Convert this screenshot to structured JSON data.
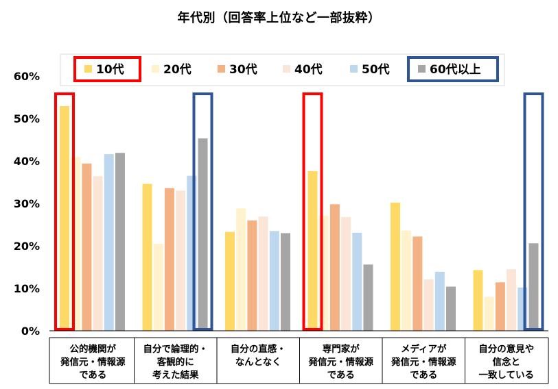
{
  "chart_data": {
    "type": "bar",
    "title": "年代別（回答率上位など一部抜粋）",
    "categories": [
      [
        "公的機関が",
        "発信元・情報源",
        "である"
      ],
      [
        "自分で論理的・",
        "客観的に",
        "考えた結果"
      ],
      [
        "自分の直感・",
        "なんとなく"
      ],
      [
        "専門家が",
        "発信元・情報源",
        "である"
      ],
      [
        "メディアが",
        "発信元・情報源",
        "である"
      ],
      [
        "自分の意見や",
        "信念と",
        "一致している"
      ]
    ],
    "series": [
      {
        "name": "10代",
        "color": "#FFD966",
        "values": [
          52.9,
          34.6,
          23.3,
          37.6,
          30.2,
          14.3
        ]
      },
      {
        "name": "20代",
        "color": "#FFF2CC",
        "values": [
          40.9,
          20.5,
          28.8,
          27.1,
          23.6,
          8.0
        ]
      },
      {
        "name": "30代",
        "color": "#F4B183",
        "values": [
          39.4,
          33.6,
          26.0,
          29.8,
          22.2,
          11.4
        ]
      },
      {
        "name": "40代",
        "color": "#FBE5D6",
        "values": [
          36.4,
          33.0,
          26.9,
          26.8,
          12.1,
          14.5
        ]
      },
      {
        "name": "50代",
        "color": "#BDD7EE",
        "values": [
          41.6,
          36.5,
          23.5,
          23.1,
          13.9,
          10.2
        ]
      },
      {
        "name": "60代以上",
        "color": "#A6A6A6",
        "values": [
          41.9,
          45.3,
          23.0,
          15.6,
          10.4,
          20.6
        ]
      }
    ],
    "yticks": [
      "0%",
      "10%",
      "20%",
      "30%",
      "40%",
      "50%",
      "60%"
    ],
    "ylim": [
      0,
      60
    ],
    "ylabel": "",
    "xlabel": "",
    "legend_position": "top",
    "highlight_boxes": [
      {
        "series": "10代",
        "category_index": 0,
        "color": "#FF0000"
      },
      {
        "series": "10代",
        "category_index": 3,
        "color": "#FF0000"
      },
      {
        "series": "60代以上",
        "category_index": 1,
        "color": "#2F5597"
      },
      {
        "series": "60代以上",
        "category_index": 5,
        "color": "#2F5597"
      }
    ],
    "legend_highlights": {
      "10代": "#FF0000",
      "60代以上": "#2F5597"
    }
  }
}
